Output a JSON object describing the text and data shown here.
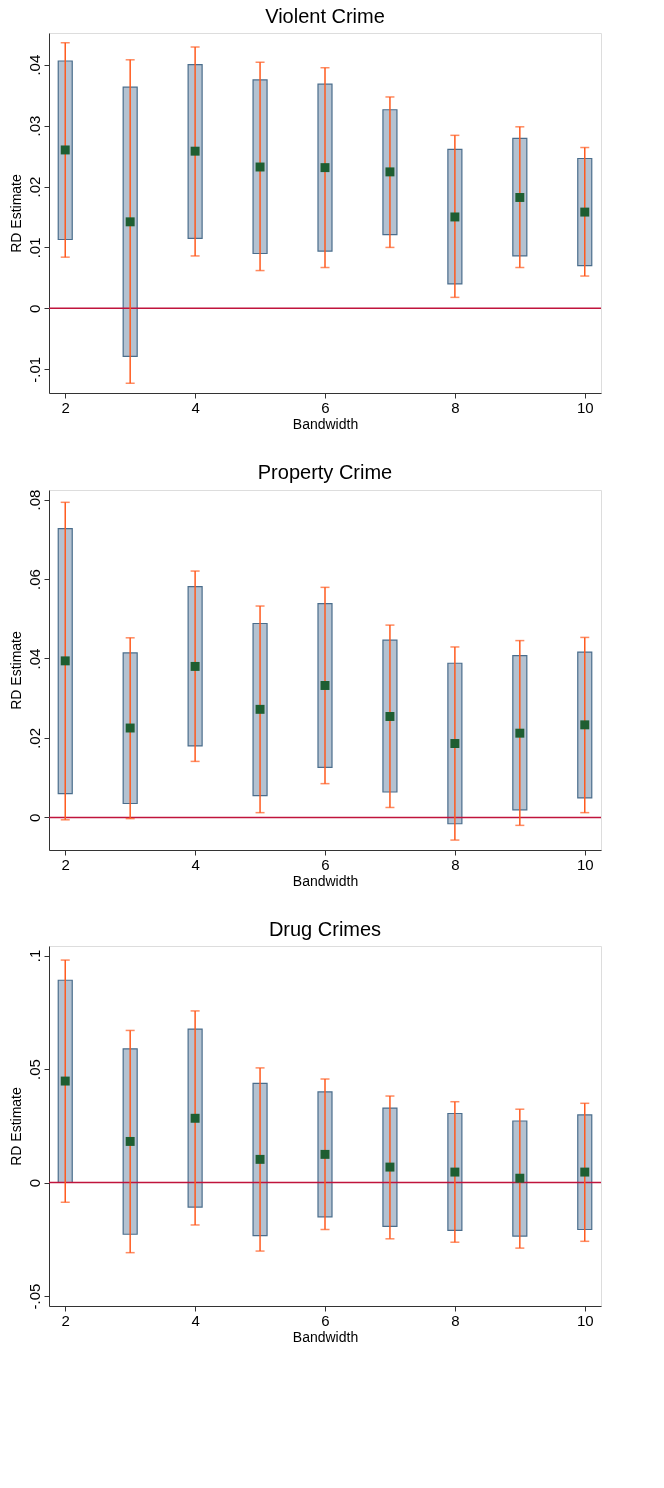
{
  "chart_data": [
    {
      "type": "bar",
      "title": "Violent Crime",
      "xlabel": "Bandwidth",
      "ylabel": "RD Estimate",
      "x": [
        2,
        3,
        4,
        5,
        6,
        7,
        8,
        9,
        10
      ],
      "xlim": [
        1.75,
        10.25
      ],
      "xticks": [
        2,
        4,
        6,
        8,
        10
      ],
      "ylim": [
        -0.0139,
        0.0452
      ],
      "yticks": [
        {
          "value": -0.01,
          "label": "-.01"
        },
        {
          "value": 0,
          "label": "0"
        },
        {
          "value": 0.01,
          "label": ".01"
        },
        {
          "value": 0.02,
          "label": ".02"
        },
        {
          "value": 0.03,
          "label": ".03"
        },
        {
          "value": 0.04,
          "label": ".04"
        }
      ],
      "grid": false,
      "marker": "square",
      "ref_lines": [
        {
          "axis": "y",
          "value": 0,
          "color": "#c0143c"
        }
      ],
      "series": [
        {
          "color": "#b4c2d1",
          "base": [
            0.0113,
            -0.0079,
            0.0115,
            0.009,
            0.0094,
            0.0121,
            0.004,
            0.0086,
            0.007
          ],
          "values": [
            0.0293,
            0.0442,
            0.0285,
            0.0285,
            0.0274,
            0.0205,
            0.0221,
            0.0193,
            0.0176
          ]
        },
        {
          "type": "scatter",
          "color": "#1e5e32",
          "values": [
            0.026,
            0.0142,
            0.0258,
            0.0232,
            0.0231,
            0.0224,
            0.015,
            0.0182,
            0.0158
          ],
          "errors": [
            [
              0.0084,
              0.0436
            ],
            [
              -0.0123,
              0.0408
            ],
            [
              0.0086,
              0.0429
            ],
            [
              0.0062,
              0.0404
            ],
            [
              0.0067,
              0.0395
            ],
            [
              0.01,
              0.0347
            ],
            [
              0.0018,
              0.0284
            ],
            [
              0.0067,
              0.0298
            ],
            [
              0.0053,
              0.0264
            ]
          ]
        }
      ]
    },
    {
      "type": "bar",
      "title": "Property Crime",
      "xlabel": "Bandwidth",
      "ylabel": "RD Estimate",
      "x": [
        2,
        3,
        4,
        5,
        6,
        7,
        8,
        9,
        10
      ],
      "xlim": [
        1.75,
        10.25
      ],
      "xticks": [
        2,
        4,
        6,
        8,
        10
      ],
      "ylim": [
        -0.0082,
        0.0824
      ],
      "yticks": [
        {
          "value": 0,
          "label": "0"
        },
        {
          "value": 0.02,
          "label": ".02"
        },
        {
          "value": 0.04,
          "label": ".04"
        },
        {
          "value": 0.06,
          "label": ".06"
        },
        {
          "value": 0.08,
          "label": ".08"
        }
      ],
      "grid": false,
      "marker": "square",
      "ref_lines": [
        {
          "axis": "y",
          "value": 0,
          "color": "#c0143c"
        }
      ],
      "series": [
        {
          "color": "#b4c2d1",
          "base": [
            0.006,
            0.0035,
            0.018,
            0.0055,
            0.0126,
            0.0064,
            -0.0016,
            0.0019,
            0.0049
          ],
          "values": [
            0.0667,
            0.0379,
            0.0401,
            0.0433,
            0.0412,
            0.0382,
            0.0404,
            0.0388,
            0.0367
          ]
        },
        {
          "type": "scatter",
          "color": "#1e5e32",
          "values": [
            0.0394,
            0.0225,
            0.038,
            0.0272,
            0.0332,
            0.0254,
            0.0186,
            0.0212,
            0.0233
          ],
          "errors": [
            [
              -0.0006,
              0.0793
            ],
            [
              -0.0003,
              0.0452
            ],
            [
              0.0141,
              0.062
            ],
            [
              0.0012,
              0.0532
            ],
            [
              0.0085,
              0.0579
            ],
            [
              0.0025,
              0.0484
            ],
            [
              -0.0057,
              0.0429
            ],
            [
              -0.002,
              0.0445
            ],
            [
              0.0012,
              0.0453
            ]
          ]
        }
      ]
    },
    {
      "type": "bar",
      "title": "Drug Crimes",
      "xlabel": "Bandwidth",
      "ylabel": "RD Estimate",
      "x": [
        2,
        3,
        4,
        5,
        6,
        7,
        8,
        9,
        10
      ],
      "xlim": [
        1.75,
        10.25
      ],
      "xticks": [
        2,
        4,
        6,
        8,
        10
      ],
      "ylim": [
        -0.0544,
        0.1042
      ],
      "yticks": [
        {
          "value": -0.05,
          "label": "-.05"
        },
        {
          "value": 0,
          "label": "0"
        },
        {
          "value": 0.05,
          "label": ".05"
        },
        {
          "value": 0.1,
          "label": ".1"
        }
      ],
      "grid": false,
      "marker": "square",
      "ref_lines": [
        {
          "axis": "y",
          "value": 0,
          "color": "#c0143c"
        }
      ],
      "series": [
        {
          "color": "#b4c2d1",
          "base": [
            0,
            -0.0228,
            -0.0108,
            -0.0234,
            -0.0151,
            -0.0193,
            -0.0211,
            -0.0236,
            -0.0207
          ],
          "values": [
            0.0891,
            0.0817,
            0.0784,
            0.0671,
            0.055,
            0.0521,
            0.0515,
            0.0507,
            0.0505
          ]
        },
        {
          "type": "scatter",
          "color": "#1e5e32",
          "values": [
            0.0447,
            0.0181,
            0.0283,
            0.0102,
            0.0124,
            0.0068,
            0.0046,
            0.0019,
            0.0046
          ],
          "errors": [
            [
              -0.0087,
              0.098
            ],
            [
              -0.0309,
              0.067
            ],
            [
              -0.0187,
              0.0756
            ],
            [
              -0.0302,
              0.0505
            ],
            [
              -0.0207,
              0.0456
            ],
            [
              -0.0248,
              0.0381
            ],
            [
              -0.0263,
              0.0356
            ],
            [
              -0.0289,
              0.0323
            ],
            [
              -0.0259,
              0.0349
            ]
          ]
        }
      ]
    }
  ]
}
